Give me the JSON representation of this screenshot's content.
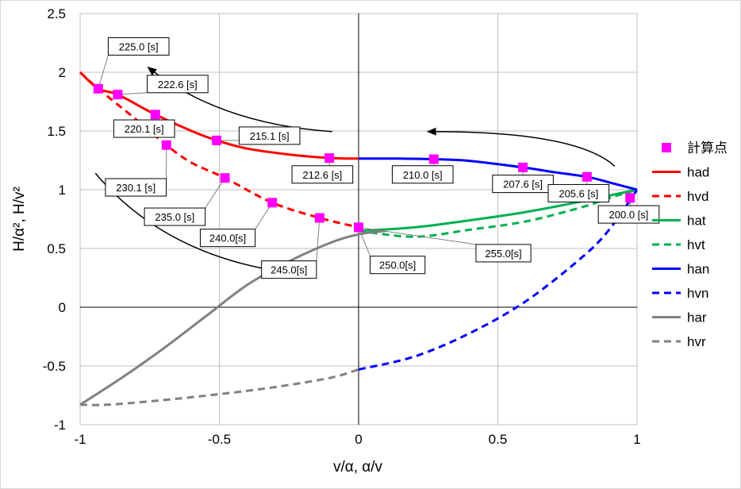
{
  "chart_data": {
    "type": "line",
    "title": "",
    "xlabel": "v/α, α/v",
    "ylabel": "H/α², H/v²",
    "xlim": [
      -1,
      1
    ],
    "ylim": [
      -1,
      2.5
    ],
    "xticks": [
      -1,
      -0.5,
      0,
      0.5,
      1
    ],
    "xtick_labels": [
      "-1",
      "-0.5",
      "0",
      "0.5",
      "1"
    ],
    "yticks": [
      -1,
      -0.5,
      0,
      0.5,
      1,
      1.5,
      2,
      2.5
    ],
    "ytick_labels": [
      "-1",
      "-0.5",
      "0",
      "0.5",
      "1",
      "1.5",
      "2",
      "2.5"
    ],
    "grid": true,
    "legend_position": "right",
    "series": [
      {
        "name": "計算点",
        "kind": "marker",
        "color": "#ff00ff",
        "points": [
          [
            -0.935,
            1.86
          ],
          [
            -0.865,
            1.81
          ],
          [
            -0.73,
            1.64
          ],
          [
            -0.69,
            1.38
          ],
          [
            -0.51,
            1.42
          ],
          [
            -0.48,
            1.1
          ],
          [
            -0.31,
            0.89
          ],
          [
            -0.14,
            0.76
          ],
          [
            -0.105,
            1.27
          ],
          [
            0,
            0.68
          ],
          [
            0.27,
            1.26
          ],
          [
            0.59,
            1.19
          ],
          [
            0.82,
            1.11
          ],
          [
            0.975,
            0.93
          ]
        ]
      },
      {
        "name": "had",
        "kind": "line",
        "style": "solid",
        "color": "#ff0000",
        "points": [
          [
            -1,
            2.0
          ],
          [
            -0.935,
            1.86
          ],
          [
            -0.865,
            1.81
          ],
          [
            -0.73,
            1.64
          ],
          [
            -0.6,
            1.5
          ],
          [
            -0.51,
            1.42
          ],
          [
            -0.4,
            1.35
          ],
          [
            -0.25,
            1.3
          ],
          [
            -0.105,
            1.27
          ],
          [
            0,
            1.265
          ]
        ]
      },
      {
        "name": "hvd",
        "kind": "line",
        "style": "dashed",
        "color": "#ff0000",
        "points": [
          [
            -1,
            2.0
          ],
          [
            -0.935,
            1.86
          ],
          [
            -0.8,
            1.6
          ],
          [
            -0.69,
            1.38
          ],
          [
            -0.6,
            1.23
          ],
          [
            -0.48,
            1.1
          ],
          [
            -0.31,
            0.89
          ],
          [
            -0.14,
            0.76
          ],
          [
            0,
            0.68
          ]
        ]
      },
      {
        "name": "hat",
        "kind": "line",
        "style": "solid",
        "color": "#00b050",
        "points": [
          [
            0,
            0.65
          ],
          [
            0.2,
            0.68
          ],
          [
            0.4,
            0.74
          ],
          [
            0.6,
            0.81
          ],
          [
            0.8,
            0.9
          ],
          [
            0.9,
            0.95
          ],
          [
            1,
            1.0
          ]
        ]
      },
      {
        "name": "hvt",
        "kind": "line",
        "style": "dashed",
        "color": "#00b050",
        "points": [
          [
            0,
            0.65
          ],
          [
            0.2,
            0.6
          ],
          [
            0.4,
            0.66
          ],
          [
            0.6,
            0.73
          ],
          [
            0.8,
            0.85
          ],
          [
            0.9,
            0.93
          ],
          [
            1,
            1.0
          ]
        ]
      },
      {
        "name": "han",
        "kind": "line",
        "style": "solid",
        "color": "#0000ff",
        "points": [
          [
            0,
            1.265
          ],
          [
            0.15,
            1.265
          ],
          [
            0.27,
            1.26
          ],
          [
            0.4,
            1.245
          ],
          [
            0.59,
            1.19
          ],
          [
            0.7,
            1.15
          ],
          [
            0.82,
            1.11
          ],
          [
            0.92,
            1.05
          ],
          [
            1,
            1.0
          ]
        ]
      },
      {
        "name": "hvn",
        "kind": "line",
        "style": "dashed",
        "color": "#0000ff",
        "points": [
          [
            0,
            -0.53
          ],
          [
            0.2,
            -0.42
          ],
          [
            0.4,
            -0.22
          ],
          [
            0.6,
            0.05
          ],
          [
            0.8,
            0.42
          ],
          [
            0.9,
            0.66
          ],
          [
            1,
            1.0
          ]
        ]
      },
      {
        "name": "har",
        "kind": "line",
        "style": "solid",
        "color": "#808080",
        "points": [
          [
            -1,
            -0.83
          ],
          [
            -0.85,
            -0.6
          ],
          [
            -0.7,
            -0.35
          ],
          [
            -0.55,
            -0.08
          ],
          [
            -0.4,
            0.19
          ],
          [
            -0.25,
            0.39
          ],
          [
            -0.1,
            0.55
          ],
          [
            0,
            0.62
          ],
          [
            0.1,
            0.65
          ]
        ]
      },
      {
        "name": "hvr",
        "kind": "line",
        "style": "dashed",
        "color": "#808080",
        "points": [
          [
            -1,
            -0.83
          ],
          [
            -0.9,
            -0.83
          ],
          [
            -0.7,
            -0.79
          ],
          [
            -0.5,
            -0.74
          ],
          [
            -0.3,
            -0.68
          ],
          [
            -0.1,
            -0.6
          ],
          [
            0,
            -0.53
          ]
        ]
      }
    ],
    "annotations": [
      {
        "text": "225.0 [s]",
        "point": [
          -0.935,
          1.86
        ],
        "box_xy": [
          -0.79,
          2.22
        ]
      },
      {
        "text": "222.6 [s]",
        "point": [
          -0.865,
          1.81
        ],
        "box_xy": [
          -0.65,
          1.9
        ]
      },
      {
        "text": "220.1 [s]",
        "point": [
          -0.73,
          1.64
        ],
        "box_xy": [
          -0.77,
          1.52
        ]
      },
      {
        "text": "215.1 [s]",
        "point": [
          -0.51,
          1.42
        ],
        "box_xy": [
          -0.32,
          1.46
        ]
      },
      {
        "text": "230.1 [s]",
        "point": [
          -0.69,
          1.38
        ],
        "box_xy": [
          -0.8,
          1.02
        ]
      },
      {
        "text": "212.6 [s]",
        "point": [
          -0.105,
          1.27
        ],
        "box_xy": [
          -0.13,
          1.13
        ]
      },
      {
        "text": "210.0 [s]",
        "point": [
          0.27,
          1.26
        ],
        "box_xy": [
          0.23,
          1.13
        ]
      },
      {
        "text": "207.6 [s]",
        "point": [
          0.59,
          1.19
        ],
        "box_xy": [
          0.59,
          1.05
        ]
      },
      {
        "text": "205.6 [s]",
        "point": [
          0.82,
          1.11
        ],
        "box_xy": [
          0.79,
          0.97
        ]
      },
      {
        "text": "235.0 [s]",
        "point": [
          -0.48,
          1.1
        ],
        "box_xy": [
          -0.66,
          0.77
        ]
      },
      {
        "text": "240.0[s]",
        "point": [
          -0.31,
          0.89
        ],
        "box_xy": [
          -0.47,
          0.59
        ]
      },
      {
        "text": "200.0 [s]",
        "point": [
          0.975,
          0.93
        ],
        "box_xy": [
          0.97,
          0.79
        ]
      },
      {
        "text": "255.0[s]",
        "point": [
          0,
          0.68
        ],
        "box_xy": [
          0.52,
          0.46
        ]
      },
      {
        "text": "250.0[s]",
        "point": [
          0,
          0.68
        ],
        "box_xy": [
          0.14,
          0.36
        ]
      },
      {
        "text": "245.0[s]",
        "point": [
          -0.14,
          0.76
        ],
        "box_xy": [
          -0.25,
          0.32
        ]
      }
    ],
    "arrows": [
      {
        "from": [
          -0.095,
          1.495
        ],
        "via": [
          -0.5,
          1.56
        ],
        "to": [
          -0.755,
          2.04
        ]
      },
      {
        "from": [
          0.92,
          1.2
        ],
        "via": [
          0.78,
          1.5
        ],
        "to": [
          0.25,
          1.495
        ]
      },
      {
        "from": [
          -0.945,
          1.14
        ],
        "via": [
          -0.7,
          0.45
        ],
        "to": [
          -0.27,
          0.3
        ]
      }
    ]
  }
}
